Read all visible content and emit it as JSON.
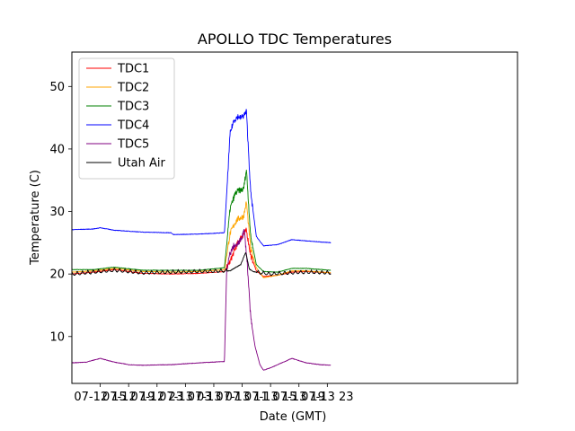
{
  "chart_data": {
    "type": "line",
    "title": "APOLLO TDC Temperatures",
    "xlabel": "Date (GMT)",
    "ylabel": "Temperature (C)",
    "x_unit": "hours since 07-12 11:00 GMT",
    "xlim": [
      0,
      62.8
    ],
    "ylim": [
      2.5,
      55.5
    ],
    "x_ticks": [
      {
        "value": 4,
        "label": "07-12 15"
      },
      {
        "value": 8,
        "label": "07-12 19"
      },
      {
        "value": 12,
        "label": "07-12 23"
      },
      {
        "value": 16,
        "label": "07-13 03"
      },
      {
        "value": 20,
        "label": "07-13 07"
      },
      {
        "value": 24,
        "label": "07-13 11"
      },
      {
        "value": 28,
        "label": "07-13 15"
      },
      {
        "value": 32,
        "label": "07-13 19"
      },
      {
        "value": 36,
        "label": "07-13 23"
      }
    ],
    "y_ticks": [
      10,
      20,
      30,
      40,
      50
    ],
    "legend_position": "top-left",
    "series": [
      {
        "name": "TDC1",
        "color": "#ff0000",
        "kind": "base",
        "x": [
          0,
          3,
          6,
          10,
          14,
          18,
          21.5,
          22.3,
          23,
          23.4,
          23.8,
          24.2,
          24.6,
          25.2,
          26,
          27,
          29,
          31,
          33,
          36.5
        ],
        "y": [
          20.0,
          20.3,
          20.7,
          20.1,
          20.0,
          20.1,
          20.4,
          22.0,
          24.0,
          25.0,
          25.8,
          26.3,
          27.0,
          23.0,
          20.5,
          19.6,
          19.8,
          20.3,
          20.4,
          20.2
        ]
      },
      {
        "name": "TDC2",
        "color": "#ffa500",
        "kind": "base",
        "x": [
          0,
          3,
          6,
          10,
          14,
          18,
          21.5,
          22.3,
          23,
          23.4,
          23.8,
          24.2,
          24.6,
          25.2,
          26,
          27,
          29,
          31,
          33,
          36.5
        ],
        "y": [
          20.3,
          20.5,
          20.9,
          20.4,
          20.3,
          20.4,
          20.7,
          26.5,
          28.2,
          28.8,
          29.0,
          29.2,
          31.5,
          24.0,
          21.0,
          19.4,
          19.8,
          20.5,
          20.5,
          20.2
        ]
      },
      {
        "name": "TDC3",
        "color": "#008000",
        "kind": "base",
        "x": [
          0,
          3,
          6,
          10,
          14,
          18,
          21.5,
          22.3,
          23,
          23.4,
          23.8,
          24.2,
          24.6,
          25.2,
          26,
          27,
          29,
          31,
          33,
          36.5
        ],
        "y": [
          20.7,
          20.7,
          21.1,
          20.6,
          20.6,
          20.6,
          21.0,
          30.5,
          32.8,
          33.3,
          33.4,
          33.6,
          36.7,
          26.0,
          21.5,
          20.4,
          20.3,
          20.9,
          20.9,
          20.6
        ]
      },
      {
        "name": "TDC4",
        "color": "#0000ff",
        "kind": "base",
        "x": [
          0,
          3,
          4,
          6,
          10,
          14,
          14.3,
          18,
          21.5,
          22.3,
          22.8,
          23.4,
          23.8,
          24.2,
          24.6,
          25.2,
          26,
          27,
          29,
          31,
          33,
          36.5
        ],
        "y": [
          27.1,
          27.2,
          27.4,
          27.0,
          26.7,
          26.6,
          26.3,
          26.4,
          26.6,
          42.5,
          44.5,
          45.2,
          45.0,
          45.3,
          46.0,
          33.0,
          26.0,
          24.5,
          24.7,
          25.5,
          25.3,
          25.0
        ]
      },
      {
        "name": "TDC5",
        "color": "#800080",
        "kind": "base",
        "x": [
          0,
          2,
          4,
          6,
          8,
          10,
          14,
          18,
          21.5,
          21.8,
          22.2,
          22.8,
          23.2,
          23.8,
          24.3,
          24.7,
          25.2,
          25.8,
          26.5,
          27,
          28,
          29,
          31,
          33,
          35,
          36.5
        ],
        "y": [
          5.8,
          5.9,
          6.5,
          5.9,
          5.5,
          5.4,
          5.5,
          5.8,
          6.0,
          20.0,
          23.0,
          24.5,
          24.5,
          25.5,
          27.0,
          22.0,
          13.0,
          8.5,
          5.5,
          4.6,
          5.0,
          5.5,
          6.5,
          5.8,
          5.5,
          5.4
        ]
      },
      {
        "name": "Utah Air",
        "color": "#000000",
        "kind": "oscillating",
        "amplitude": 0.35,
        "period": 0.75,
        "x": [
          0,
          3,
          6,
          10,
          14,
          18,
          21.5,
          22.3,
          23,
          23.8,
          24.5,
          25,
          25.5,
          26.5,
          28,
          31,
          33,
          36.5
        ],
        "y": [
          20.0,
          20.3,
          20.6,
          20.2,
          20.3,
          20.4,
          20.5,
          20.5,
          21.0,
          21.5,
          23.5,
          20.8,
          20.4,
          20.2,
          20.0,
          20.2,
          20.3,
          20.2
        ]
      }
    ]
  }
}
